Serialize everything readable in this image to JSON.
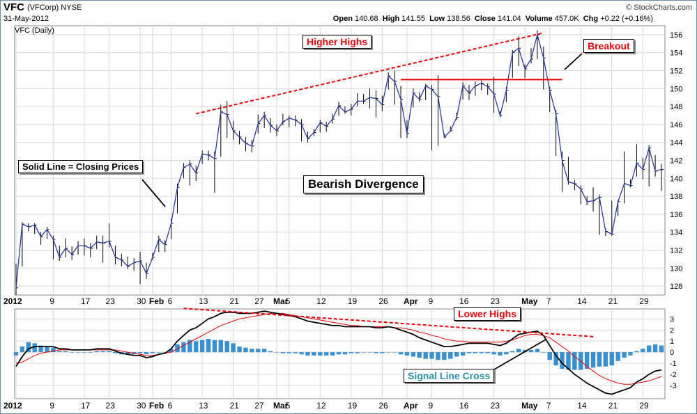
{
  "header": {
    "ticker": "VFC",
    "company": "(VFCorp)",
    "exchange": "NYSE",
    "date": "31-May-2012",
    "watermark": "© StockCharts.com",
    "open_label": "Open",
    "open": "140.68",
    "high_label": "High",
    "high": "141.55",
    "low_label": "Low",
    "low": "138.56",
    "close_label": "Close",
    "close": "141.04",
    "volume_label": "Volume",
    "volume": "457.0K",
    "chg_label": "Chg",
    "chg": "+0.22 (+0.16%)"
  },
  "annotations": {
    "higher_highs": "Higher Highs",
    "breakout": "Breakout",
    "closing_prices": "Solid Line = Closing Prices",
    "bearish_divergence": "Bearish Divergence",
    "lower_highs": "Lower Highs",
    "signal_cross": "Signal Line Cross"
  },
  "colors": {
    "price_line": "#2b3aa0",
    "bars": "#000000",
    "trend_red": "#e8000b",
    "macd_line": "#000000",
    "signal_line": "#e8000b",
    "histogram": "#3a8fd0",
    "grid": "#d8d8d8",
    "frame": "#6a8fb3"
  },
  "chart_data": [
    {
      "type": "line",
      "panel_label": "VFC (Daily)",
      "ylim": [
        127,
        157
      ],
      "yticks": [
        128,
        130,
        132,
        134,
        136,
        138,
        140,
        142,
        144,
        146,
        148,
        150,
        152,
        154,
        156
      ],
      "x_labels": [
        {
          "i": 0,
          "t": "2012",
          "bold": true
        },
        {
          "i": 6,
          "t": "9"
        },
        {
          "i": 11,
          "t": "17"
        },
        {
          "i": 15,
          "t": "23"
        },
        {
          "i": 20,
          "t": "30"
        },
        {
          "i": 22,
          "t": "Feb",
          "bold": true
        },
        {
          "i": 25,
          "t": "6"
        },
        {
          "i": 30,
          "t": "13"
        },
        {
          "i": 35,
          "t": "21"
        },
        {
          "i": 39,
          "t": "27"
        },
        {
          "i": 42,
          "t": "Mar",
          "bold": true
        },
        {
          "i": 44,
          "t": "5"
        },
        {
          "i": 49,
          "t": "12"
        },
        {
          "i": 54,
          "t": "19"
        },
        {
          "i": 59,
          "t": "26"
        },
        {
          "i": 63,
          "t": "Apr",
          "bold": true
        },
        {
          "i": 67,
          "t": "9"
        },
        {
          "i": 72,
          "t": "16"
        },
        {
          "i": 77,
          "t": "23"
        },
        {
          "i": 82,
          "t": "May",
          "bold": true
        },
        {
          "i": 86,
          "t": "7"
        },
        {
          "i": 91,
          "t": "14"
        },
        {
          "i": 96,
          "t": "21"
        },
        {
          "i": 101,
          "t": "29"
        }
      ],
      "series": [
        {
          "values": [
            127.8,
            134.9,
            134.6,
            134.8,
            133.5,
            134.3,
            133.2,
            131.2,
            132.2,
            131.5,
            132.5,
            132.5,
            132.2,
            132.9,
            132.8,
            133.0,
            131.2,
            130.9,
            130.2,
            130.6,
            130.8,
            129.4,
            131.2,
            133.2,
            132.6,
            135.0,
            139.0,
            141.2,
            141.6,
            140.6,
            142.7,
            142.6,
            142.2,
            147.4,
            147.1,
            145.3,
            144.6,
            143.9,
            143.6,
            146.1,
            147.0,
            145.9,
            145.3,
            146.3,
            146.7,
            146.5,
            146.0,
            144.4,
            145.1,
            146.2,
            145.8,
            146.6,
            148.1,
            147.4,
            147.7,
            148.6,
            148.6,
            149.0,
            148.9,
            148.2,
            151.4,
            150.8,
            148.8,
            145.0,
            149.5,
            148.8,
            150.3,
            149.9,
            149.1,
            144.6,
            145.3,
            146.8,
            150.3,
            149.5,
            150.3,
            150.6,
            150.2,
            149.4,
            147.0,
            149.8,
            154.0,
            154.5,
            152.2,
            153.3,
            156.0,
            153.4,
            149.8,
            147.2,
            142.0,
            139.6,
            139.4,
            138.8,
            137.4,
            137.5,
            137.9,
            134.1,
            133.8,
            137.4,
            139.4,
            139.2,
            141.7,
            141.0,
            143.4,
            140.8,
            141.0
          ],
          "wicks_high": [
            130.5,
            135.1,
            135.0,
            135.0,
            134.0,
            134.6,
            133.6,
            132.5,
            133.3,
            132.4,
            133.0,
            133.3,
            132.8,
            133.6,
            133.6,
            135.0,
            132.5,
            131.6,
            131.3,
            131.1,
            131.8,
            130.6,
            131.7,
            133.6,
            133.1,
            135.5,
            139.4,
            141.7,
            142.0,
            141.4,
            143.1,
            143.1,
            143.0,
            148.2,
            148.6,
            146.4,
            145.3,
            144.6,
            144.3,
            147.1,
            147.4,
            146.7,
            146.0,
            147.2,
            147.0,
            147.0,
            146.6,
            145.2,
            145.5,
            146.5,
            146.3,
            147.2,
            148.5,
            148.0,
            148.3,
            149.5,
            149.4,
            150.0,
            149.8,
            149.2,
            151.8,
            152.0,
            150.3,
            146.5,
            150.0,
            149.6,
            150.5,
            150.4,
            151.5,
            145.0,
            145.8,
            147.3,
            150.7,
            150.4,
            150.8,
            150.9,
            150.6,
            151.3,
            147.5,
            150.2,
            154.3,
            155.8,
            152.7,
            154.5,
            156.5,
            154.7,
            150.2,
            147.6,
            143.0,
            142.4,
            139.8,
            139.2,
            138.0,
            139.0,
            138.2,
            134.4,
            137.5,
            137.6,
            143.0,
            139.9,
            143.8,
            142.3,
            143.7,
            142.6,
            141.6
          ],
          "wicks_low": [
            127.0,
            130.2,
            134.1,
            133.8,
            132.6,
            133.2,
            131.0,
            130.8,
            131.2,
            130.9,
            131.5,
            131.4,
            131.2,
            132.1,
            130.6,
            132.3,
            130.4,
            130.2,
            129.9,
            129.7,
            128.2,
            128.8,
            130.9,
            131.8,
            131.8,
            133.2,
            136.1,
            140.0,
            139.2,
            139.7,
            141.6,
            142.0,
            138.4,
            142.4,
            144.5,
            144.3,
            143.8,
            143.0,
            142.9,
            145.0,
            145.6,
            145.1,
            144.7,
            145.9,
            145.7,
            145.8,
            144.1,
            144.0,
            144.7,
            145.1,
            145.2,
            146.1,
            147.0,
            147.2,
            147.0,
            148.0,
            148.3,
            147.8,
            146.8,
            147.5,
            149.9,
            148.2,
            144.5,
            144.5,
            147.9,
            148.5,
            148.7,
            143.1,
            143.6,
            144.5,
            145.2,
            146.5,
            148.8,
            148.7,
            149.2,
            149.8,
            149.3,
            147.3,
            146.8,
            148.5,
            151.2,
            152.5,
            151.2,
            152.8,
            153.3,
            149.9,
            147.4,
            142.5,
            138.5,
            139.3,
            138.7,
            137.1,
            137.0,
            136.3,
            133.7,
            133.6,
            133.6,
            135.8,
            137.2,
            139.0,
            140.2,
            139.9,
            139.1,
            140.2,
            138.6
          ]
        }
      ]
    },
    {
      "type": "bar",
      "ylim": [
        -4.2,
        3.9
      ],
      "yticks": [
        -3,
        -2,
        -1,
        0,
        1,
        2,
        3
      ],
      "x_labels": [
        {
          "i": 0,
          "t": "2012",
          "bold": true
        },
        {
          "i": 6,
          "t": "9"
        },
        {
          "i": 11,
          "t": "17"
        },
        {
          "i": 15,
          "t": "23"
        },
        {
          "i": 20,
          "t": "30"
        },
        {
          "i": 22,
          "t": "Feb",
          "bold": true
        },
        {
          "i": 25,
          "t": "6"
        },
        {
          "i": 30,
          "t": "13"
        },
        {
          "i": 35,
          "t": "21"
        },
        {
          "i": 39,
          "t": "27"
        },
        {
          "i": 42,
          "t": "Mar",
          "bold": true
        },
        {
          "i": 44,
          "t": "5"
        },
        {
          "i": 49,
          "t": "12"
        },
        {
          "i": 54,
          "t": "19"
        },
        {
          "i": 59,
          "t": "26"
        },
        {
          "i": 63,
          "t": "Apr",
          "bold": true
        },
        {
          "i": 67,
          "t": "9"
        },
        {
          "i": 72,
          "t": "16"
        },
        {
          "i": 77,
          "t": "23"
        },
        {
          "i": 82,
          "t": "May",
          "bold": true
        },
        {
          "i": 86,
          "t": "7"
        },
        {
          "i": 91,
          "t": "14"
        },
        {
          "i": 96,
          "t": "21"
        },
        {
          "i": 101,
          "t": "29"
        }
      ],
      "series": [
        {
          "values": [
            -1.3,
            -0.4,
            0.3,
            0.5,
            0.5,
            0.5,
            0.5,
            0.3,
            0.3,
            0.2,
            0.2,
            0.2,
            0.2,
            0.3,
            0.3,
            0.3,
            0.1,
            -0.1,
            -0.2,
            -0.3,
            -0.3,
            -0.5,
            -0.4,
            -0.2,
            -0.1,
            0.3,
            1.0,
            1.5,
            2.0,
            2.2,
            2.6,
            3.0,
            3.2,
            3.5,
            3.6,
            3.6,
            3.5,
            3.5,
            3.5,
            3.6,
            3.7,
            3.6,
            3.5,
            3.4,
            3.3,
            3.2,
            3.0,
            2.8,
            2.7,
            2.6,
            2.5,
            2.4,
            2.4,
            2.3,
            2.3,
            2.3,
            2.3,
            2.3,
            2.2,
            2.2,
            2.3,
            2.2,
            2.0,
            1.8,
            1.6,
            1.3,
            1.1,
            0.9,
            0.7,
            0.5,
            0.5,
            0.6,
            0.7,
            0.8,
            0.8,
            0.8,
            0.8,
            0.7,
            0.6,
            0.8,
            1.2,
            1.6,
            1.7,
            1.8,
            1.9,
            1.5,
            0.6,
            -0.3,
            -1.0,
            -1.5,
            -2.0,
            -2.4,
            -2.8,
            -3.1,
            -3.4,
            -3.7,
            -3.8,
            -3.6,
            -3.4,
            -3.2,
            -2.7,
            -2.4,
            -2.0,
            -1.7,
            -1.6
          ]
        },
        {
          "values": [
            -1.0,
            -0.9,
            -0.6,
            -0.3,
            -0.1,
            0.0,
            0.1,
            0.2,
            0.2,
            0.2,
            0.2,
            0.2,
            0.2,
            0.2,
            0.2,
            0.2,
            0.2,
            0.1,
            0.0,
            -0.1,
            -0.2,
            -0.3,
            -0.3,
            -0.2,
            -0.1,
            0.0,
            0.3,
            0.6,
            0.9,
            1.2,
            1.5,
            1.8,
            2.1,
            2.4,
            2.6,
            2.8,
            3.0,
            3.1,
            3.2,
            3.3,
            3.4,
            3.5,
            3.5,
            3.5,
            3.4,
            3.3,
            3.2,
            3.1,
            3.0,
            2.9,
            2.8,
            2.7,
            2.6,
            2.5,
            2.4,
            2.4,
            2.3,
            2.3,
            2.3,
            2.3,
            2.3,
            2.2,
            2.2,
            2.1,
            2.0,
            1.8,
            1.7,
            1.5,
            1.4,
            1.2,
            1.1,
            1.0,
            1.0,
            0.9,
            0.9,
            0.9,
            0.9,
            0.9,
            0.9,
            1.0,
            1.1,
            1.3,
            1.5,
            1.6,
            1.6,
            1.5,
            1.3,
            0.9,
            0.5,
            0.1,
            -0.4,
            -0.8,
            -1.3,
            -1.7,
            -2.1,
            -2.4,
            -2.6,
            -2.8,
            -2.9,
            -2.9,
            -2.8,
            -2.7,
            -2.6,
            -2.4,
            -2.2
          ]
        },
        {
          "values": [
            -0.3,
            0.5,
            0.9,
            0.8,
            0.6,
            0.5,
            0.4,
            0.1,
            0.1,
            0.0,
            0.0,
            0.0,
            0.0,
            0.1,
            0.1,
            0.1,
            -0.1,
            -0.2,
            -0.2,
            -0.2,
            -0.1,
            -0.2,
            -0.1,
            0.0,
            0.0,
            0.3,
            0.7,
            0.9,
            1.1,
            1.0,
            1.1,
            1.2,
            1.1,
            1.1,
            1.0,
            0.8,
            0.5,
            0.4,
            0.3,
            0.3,
            0.3,
            0.1,
            0.0,
            -0.1,
            -0.1,
            -0.1,
            -0.2,
            -0.3,
            -0.3,
            -0.3,
            -0.3,
            -0.3,
            -0.2,
            -0.2,
            -0.1,
            -0.1,
            0.0,
            0.0,
            -0.1,
            -0.1,
            0.0,
            0.0,
            -0.2,
            -0.3,
            -0.4,
            -0.5,
            -0.6,
            -0.6,
            -0.7,
            -0.7,
            -0.6,
            -0.4,
            -0.3,
            -0.1,
            -0.1,
            -0.1,
            -0.1,
            -0.2,
            -0.3,
            -0.2,
            0.1,
            0.3,
            0.2,
            0.2,
            0.3,
            0.0,
            -0.7,
            -1.2,
            -1.5,
            -1.6,
            -1.6,
            -1.6,
            -1.5,
            -1.4,
            -1.3,
            -1.3,
            -1.2,
            -0.8,
            -0.5,
            -0.3,
            0.1,
            0.3,
            0.6,
            0.7,
            0.6
          ]
        }
      ]
    }
  ]
}
